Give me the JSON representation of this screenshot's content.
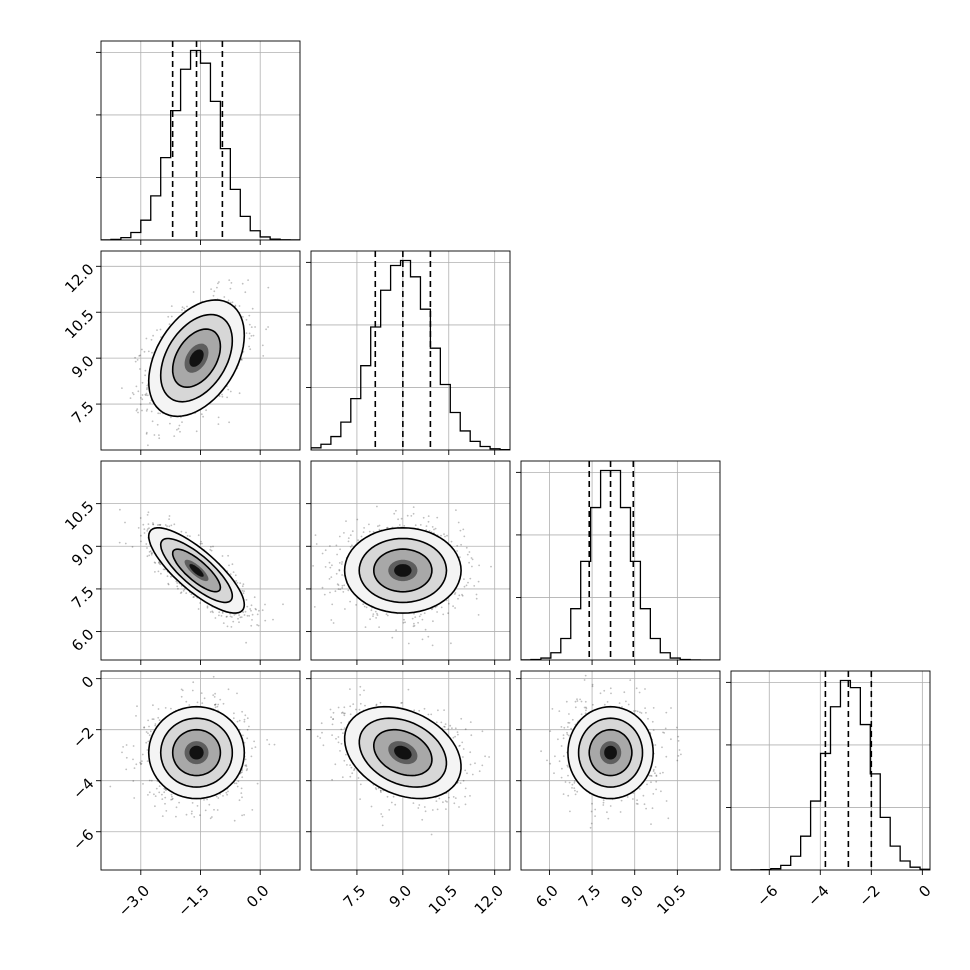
{
  "chart_data": {
    "type": "corner",
    "title": "",
    "parameters": [
      {
        "mean": -1.6,
        "std": 0.6,
        "lim": [
          -4.0,
          1.0
        ],
        "ticks": [
          -3.0,
          -1.5,
          0.0
        ],
        "tick_labels": [
          "−3.0",
          "−1.5",
          "0.0"
        ],
        "quantiles": [
          -2.2,
          -1.6,
          -0.95
        ]
      },
      {
        "mean": 9.0,
        "std": 0.95,
        "lim": [
          6.0,
          12.5
        ],
        "ticks": [
          7.5,
          9.0,
          10.5,
          12.0
        ],
        "tick_labels": [
          "7.5",
          "9.0",
          "10.5",
          "12.0"
        ],
        "quantiles": [
          8.1,
          9.0,
          9.9
        ]
      },
      {
        "mean": 8.15,
        "std": 0.75,
        "lim": [
          5.0,
          12.0
        ],
        "ticks": [
          6.0,
          7.5,
          9.0,
          10.5
        ],
        "tick_labels": [
          "6.0",
          "7.5",
          "9.0",
          "10.5"
        ],
        "quantiles": [
          7.4,
          8.15,
          8.95
        ]
      },
      {
        "mean": -2.9,
        "std": 0.9,
        "lim": [
          -7.5,
          0.3
        ],
        "ticks": [
          -6,
          -4,
          -2,
          0
        ],
        "tick_labels": [
          "−6",
          "−4",
          "−2",
          "0"
        ],
        "quantiles": [
          -3.8,
          -2.9,
          -2.0
        ]
      }
    ],
    "correlations": [
      [
        1,
        0.4,
        -0.8,
        0.0
      ],
      [
        0.4,
        1,
        0.0,
        -0.3
      ],
      [
        -0.8,
        0.0,
        1,
        0.0
      ],
      [
        0.0,
        -0.3,
        0.0,
        1
      ]
    ],
    "histogram_bins": 20,
    "contour_levels": [
      0.118,
      0.393,
      0.675,
      0.865
    ],
    "grid": true,
    "legend": "none",
    "colors": {
      "line": "#000000",
      "grid": "#b0b0b0",
      "points": "#000000",
      "background": "#ffffff"
    }
  }
}
